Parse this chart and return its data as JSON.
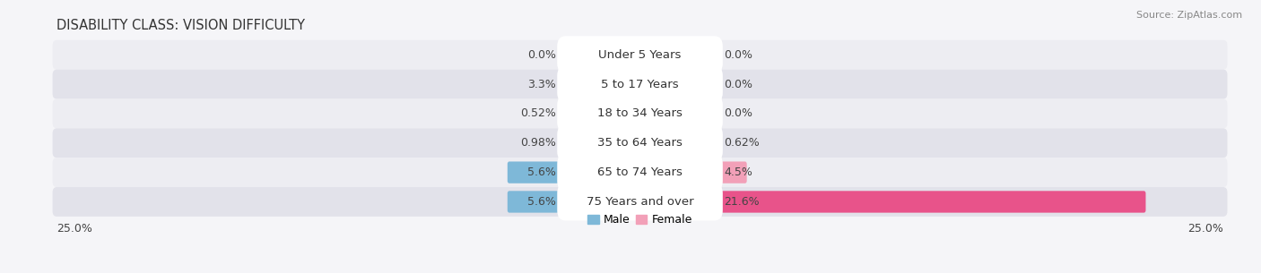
{
  "title": "DISABILITY CLASS: VISION DIFFICULTY",
  "source": "Source: ZipAtlas.com",
  "categories": [
    "Under 5 Years",
    "5 to 17 Years",
    "18 to 34 Years",
    "35 to 64 Years",
    "65 to 74 Years",
    "75 Years and over"
  ],
  "male_values": [
    0.0,
    3.3,
    0.52,
    0.98,
    5.6,
    5.6
  ],
  "female_values": [
    0.0,
    0.0,
    0.0,
    0.62,
    4.5,
    21.6
  ],
  "male_color": "#7eb8d8",
  "female_color": "#f2a0b8",
  "female_color_last": "#e8538a",
  "row_bg_odd": "#ededf2",
  "row_bg_even": "#e2e2ea",
  "axis_limit": 25.0,
  "title_fontsize": 10.5,
  "label_fontsize": 9.5,
  "value_fontsize": 9,
  "source_fontsize": 8,
  "bar_height": 0.58,
  "background_color": "#f5f5f8"
}
